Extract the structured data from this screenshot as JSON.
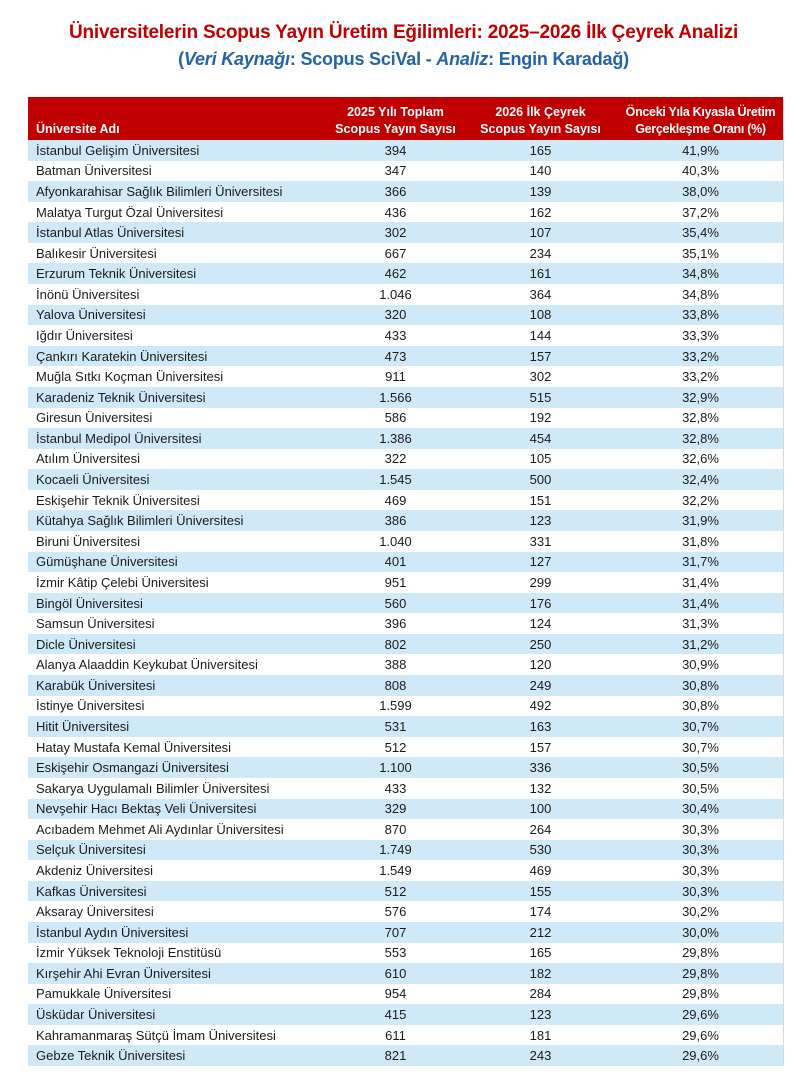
{
  "colors": {
    "title_red": "#c00000",
    "subtitle_blue": "#2563a8",
    "header_bg": "#c00000",
    "row_alt": "#cfe9f8"
  },
  "header": {
    "title": "Üniversitelerin Scopus Yayın Üretim Eğilimleri: 2025–2026 İlk Çeyrek Analizi",
    "subtitle": {
      "segments": [
        {
          "text": "(",
          "italic": false
        },
        {
          "text": "Veri Kaynağı",
          "italic": true
        },
        {
          "text": ": Scopus SciVal - ",
          "italic": false
        },
        {
          "text": "Analiz",
          "italic": true
        },
        {
          "text": ": Engin Karadağ)",
          "italic": false
        }
      ]
    }
  },
  "table": {
    "columns": [
      {
        "lines": [
          "Üniversite Adı",
          ""
        ]
      },
      {
        "lines": [
          "2025 Yılı Toplam",
          "Scopus Yayın Sayısı"
        ]
      },
      {
        "lines": [
          "2026 İlk Çeyrek",
          "Scopus Yayın Sayısı"
        ]
      },
      {
        "lines": [
          "Önceki Yıla Kıyasla Üretim",
          "Gerçekleşme Oranı (%)"
        ]
      }
    ],
    "rows": [
      [
        "İstanbul Gelişim Üniversitesi",
        "394",
        "165",
        "41,9%"
      ],
      [
        "Batman Üniversitesi",
        "347",
        "140",
        "40,3%"
      ],
      [
        "Afyonkarahisar Sağlık Bilimleri Üniversitesi",
        "366",
        "139",
        "38,0%"
      ],
      [
        "Malatya Turgut Özal Üniversitesi",
        "436",
        "162",
        "37,2%"
      ],
      [
        "İstanbul Atlas Üniversitesi",
        "302",
        "107",
        "35,4%"
      ],
      [
        "Balıkesir Üniversitesi",
        "667",
        "234",
        "35,1%"
      ],
      [
        "Erzurum Teknik Üniversitesi",
        "462",
        "161",
        "34,8%"
      ],
      [
        "İnönü Üniversitesi",
        "1.046",
        "364",
        "34,8%"
      ],
      [
        "Yalova Üniversitesi",
        "320",
        "108",
        "33,8%"
      ],
      [
        "Iğdır Üniversitesi",
        "433",
        "144",
        "33,3%"
      ],
      [
        "Çankırı Karatekin Üniversitesi",
        "473",
        "157",
        "33,2%"
      ],
      [
        "Muğla Sıtkı Koçman Üniversitesi",
        "911",
        "302",
        "33,2%"
      ],
      [
        "Karadeniz Teknik Üniversitesi",
        "1.566",
        "515",
        "32,9%"
      ],
      [
        "Giresun Üniversitesi",
        "586",
        "192",
        "32,8%"
      ],
      [
        "İstanbul Medipol Üniversitesi",
        "1.386",
        "454",
        "32,8%"
      ],
      [
        "Atılım Üniversitesi",
        "322",
        "105",
        "32,6%"
      ],
      [
        "Kocaeli Üniversitesi",
        "1.545",
        "500",
        "32,4%"
      ],
      [
        "Eskişehir Teknik Üniversitesi",
        "469",
        "151",
        "32,2%"
      ],
      [
        "Kütahya Sağlık Bilimleri Üniversitesi",
        "386",
        "123",
        "31,9%"
      ],
      [
        "Biruni Üniversitesi",
        "1.040",
        "331",
        "31,8%"
      ],
      [
        "Gümüşhane Üniversitesi",
        "401",
        "127",
        "31,7%"
      ],
      [
        "İzmir Kâtip Çelebi Üniversitesi",
        "951",
        "299",
        "31,4%"
      ],
      [
        "Bingöl Üniversitesi",
        "560",
        "176",
        "31,4%"
      ],
      [
        "Samsun Üniversitesi",
        "396",
        "124",
        "31,3%"
      ],
      [
        "Dicle Üniversitesi",
        "802",
        "250",
        "31,2%"
      ],
      [
        "Alanya Alaaddin Keykubat Üniversitesi",
        "388",
        "120",
        "30,9%"
      ],
      [
        "Karabük Üniversitesi",
        "808",
        "249",
        "30,8%"
      ],
      [
        "İstinye Üniversitesi",
        "1.599",
        "492",
        "30,8%"
      ],
      [
        "Hitit Üniversitesi",
        "531",
        "163",
        "30,7%"
      ],
      [
        "Hatay Mustafa Kemal Üniversitesi",
        "512",
        "157",
        "30,7%"
      ],
      [
        "Eskişehir Osmangazi Üniversitesi",
        "1.100",
        "336",
        "30,5%"
      ],
      [
        "Sakarya Uygulamalı Bilimler Üniversitesi",
        "433",
        "132",
        "30,5%"
      ],
      [
        "Nevşehir Hacı Bektaş Veli Üniversitesi",
        "329",
        "100",
        "30,4%"
      ],
      [
        "Acıbadem Mehmet Ali Aydınlar Üniversitesi",
        "870",
        "264",
        "30,3%"
      ],
      [
        "Selçuk Üniversitesi",
        "1.749",
        "530",
        "30,3%"
      ],
      [
        "Akdeniz Üniversitesi",
        "1.549",
        "469",
        "30,3%"
      ],
      [
        "Kafkas Üniversitesi",
        "512",
        "155",
        "30,3%"
      ],
      [
        "Aksaray Üniversitesi",
        "576",
        "174",
        "30,2%"
      ],
      [
        "İstanbul Aydın Üniversitesi",
        "707",
        "212",
        "30,0%"
      ],
      [
        "İzmir Yüksek Teknoloji Enstitüsü",
        "553",
        "165",
        "29,8%"
      ],
      [
        "Kırşehir Ahi Evran Üniversitesi",
        "610",
        "182",
        "29,8%"
      ],
      [
        "Pamukkale Üniversitesi",
        "954",
        "284",
        "29,8%"
      ],
      [
        "Üsküdar Üniversitesi",
        "415",
        "123",
        "29,6%"
      ],
      [
        "Kahramanmaraş Sütçü İmam Üniversitesi",
        "611",
        "181",
        "29,6%"
      ],
      [
        "Gebze Teknik Üniversitesi",
        "821",
        "243",
        "29,6%"
      ]
    ]
  }
}
